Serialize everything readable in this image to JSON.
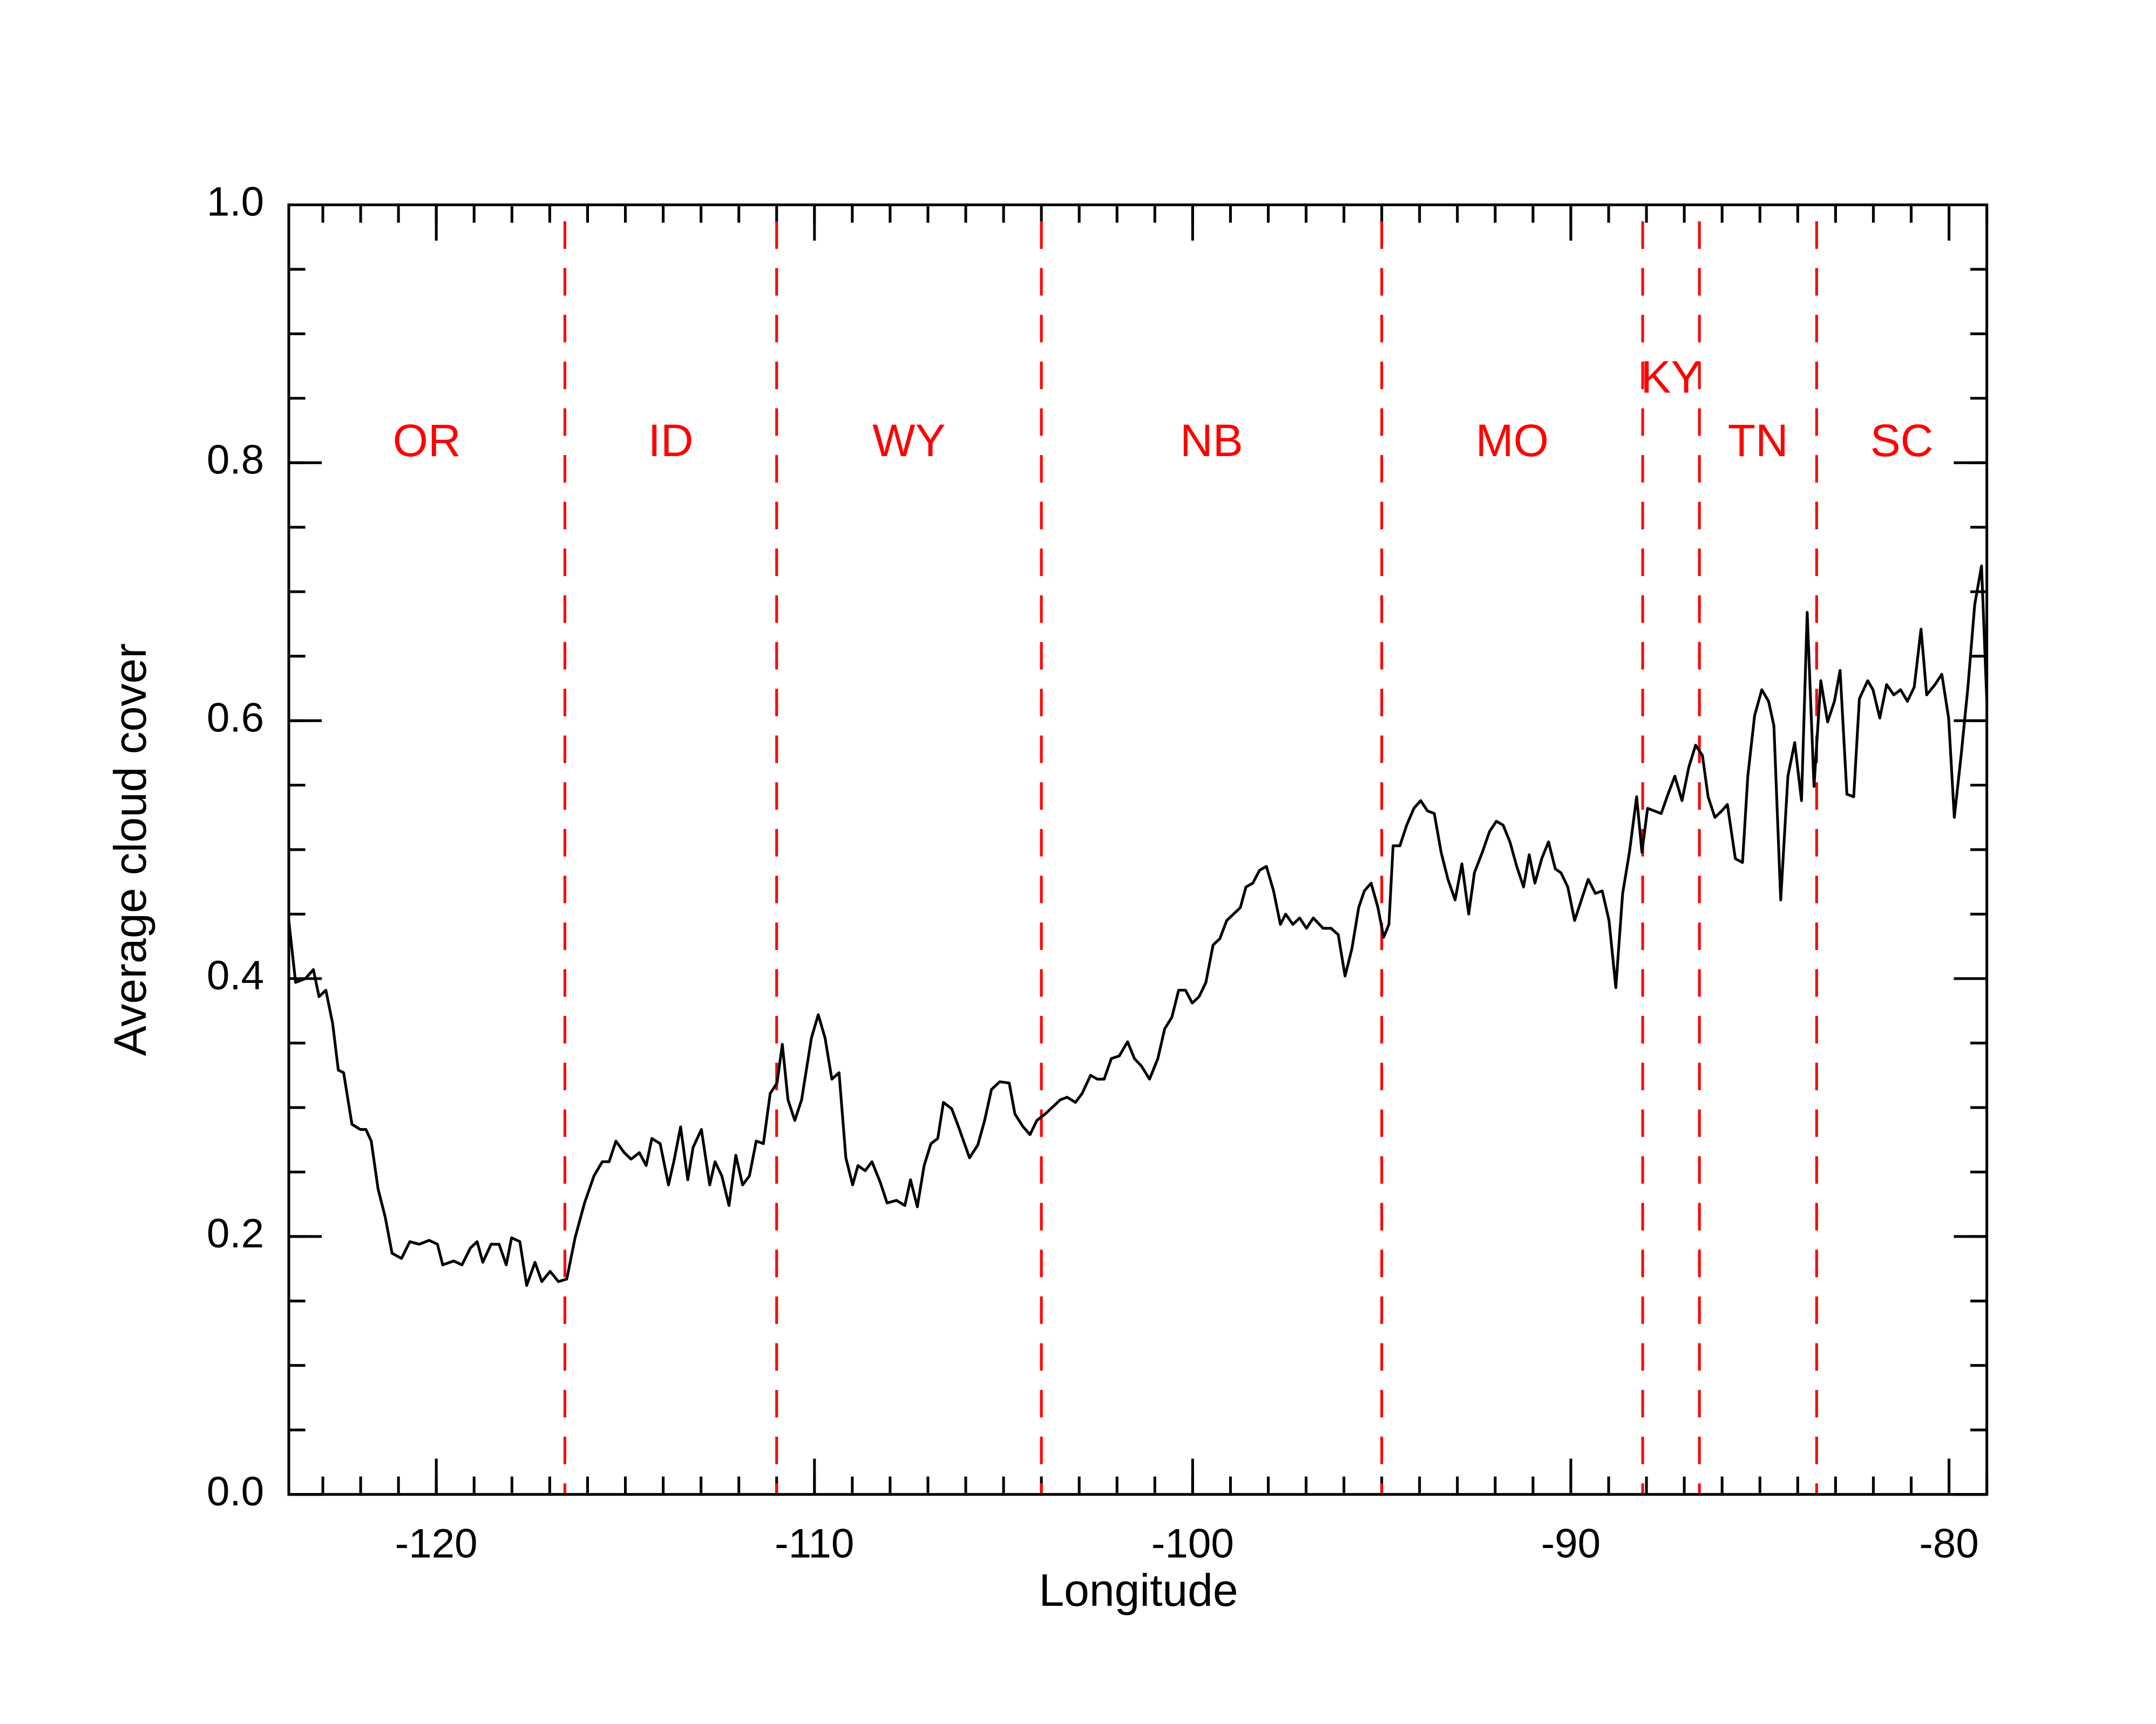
{
  "chart_data": {
    "type": "line",
    "xlabel": "Longitude",
    "ylabel": "Average cloud cover",
    "color": "#000000",
    "xlim": [
      -123.9,
      -79.0
    ],
    "ylim": [
      0,
      1
    ],
    "xticks": [
      -120,
      -110,
      -100,
      -90,
      -80
    ],
    "yticks": [
      {
        "value": 0,
        "label": "0.0"
      },
      0.2,
      0.4,
      0.6,
      0.8,
      {
        "value": 1,
        "label": "1.0"
      }
    ],
    "xminor": [
      -123,
      -122,
      -121,
      -120,
      -119,
      -118,
      -117,
      -116,
      -115,
      -114,
      -113,
      -112,
      -111,
      -110,
      -109,
      -108,
      -107,
      -106,
      -105,
      -104,
      -103,
      -102,
      -101,
      -100,
      -99,
      -98,
      -97,
      -96,
      -95,
      -94,
      -93,
      -92,
      -91,
      -90,
      -89,
      -88,
      -87,
      -86,
      -85,
      -84,
      -83,
      -82,
      -81,
      -80,
      -79
    ],
    "yminor": [
      0.05,
      0.1,
      0.15,
      0.2,
      0.25,
      0.3,
      0.35,
      0.4,
      0.45,
      0.5,
      0.55,
      0.6,
      0.65,
      0.7,
      0.75,
      0.8,
      0.85,
      0.9,
      0.95
    ],
    "boundaries": [
      -116.6,
      -111.0,
      -104.0,
      -95.0,
      -88.1,
      -86.6,
      -83.5
    ],
    "boundary_color": "#ff0000",
    "regions": [
      "OR",
      "ID",
      "WY",
      "NB",
      "MO",
      "KY",
      "TN",
      "SC"
    ],
    "x": [
      -123.9,
      -123.72,
      -123.46,
      -123.25,
      -123.1,
      -122.92,
      -122.74,
      -122.59,
      -122.45,
      -122.23,
      -122.01,
      -121.86,
      -121.72,
      -121.54,
      -121.35,
      -121.17,
      -120.92,
      -120.7,
      -120.45,
      -120.19,
      -119.97,
      -119.83,
      -119.54,
      -119.32,
      -119.1,
      -118.92,
      -118.77,
      -118.55,
      -118.34,
      -118.15,
      -118.01,
      -117.79,
      -117.61,
      -117.39,
      -117.21,
      -116.99,
      -116.77,
      -116.55,
      -116.33,
      -116.08,
      -115.83,
      -115.61,
      -115.43,
      -115.25,
      -115.03,
      -114.85,
      -114.63,
      -114.45,
      -114.3,
      -114.08,
      -113.86,
      -113.72,
      -113.54,
      -113.35,
      -113.21,
      -112.99,
      -112.77,
      -112.63,
      -112.45,
      -112.26,
      -112.08,
      -111.9,
      -111.72,
      -111.54,
      -111.35,
      -111.17,
      -110.99,
      -110.85,
      -110.7,
      -110.52,
      -110.34,
      -110.08,
      -109.9,
      -109.72,
      -109.54,
      -109.35,
      -109.17,
      -108.99,
      -108.85,
      -108.66,
      -108.48,
      -108.26,
      -108.08,
      -107.83,
      -107.61,
      -107.46,
      -107.28,
      -107.1,
      -106.92,
      -106.74,
      -106.59,
      -106.37,
      -106.19,
      -105.9,
      -105.68,
      -105.5,
      -105.32,
      -105.1,
      -104.85,
      -104.7,
      -104.48,
      -104.3,
      -104.12,
      -103.9,
      -103.68,
      -103.5,
      -103.32,
      -103.1,
      -102.92,
      -102.7,
      -102.52,
      -102.34,
      -102.15,
      -101.94,
      -101.72,
      -101.54,
      -101.35,
      -101.14,
      -100.92,
      -100.74,
      -100.55,
      -100.37,
      -100.19,
      -100.01,
      -99.83,
      -99.65,
      -99.46,
      -99.28,
      -99.1,
      -98.92,
      -98.74,
      -98.59,
      -98.41,
      -98.23,
      -98.05,
      -97.86,
      -97.68,
      -97.54,
      -97.35,
      -97.17,
      -96.99,
      -96.81,
      -96.55,
      -96.34,
      -96.15,
      -95.97,
      -95.79,
      -95.61,
      -95.46,
      -95.28,
      -95.1,
      -94.95,
      -94.81,
      -94.7,
      -94.52,
      -94.34,
      -94.15,
      -93.97,
      -93.79,
      -93.61,
      -93.43,
      -93.25,
      -93.06,
      -92.88,
      -92.7,
      -92.55,
      -92.34,
      -92.15,
      -91.97,
      -91.79,
      -91.61,
      -91.43,
      -91.25,
      -91.1,
      -90.95,
      -90.77,
      -90.59,
      -90.41,
      -90.26,
      -90.08,
      -89.9,
      -89.72,
      -89.54,
      -89.35,
      -89.17,
      -88.99,
      -88.81,
      -88.63,
      -88.45,
      -88.26,
      -88.12,
      -87.97,
      -87.79,
      -87.61,
      -87.43,
      -87.25,
      -87.06,
      -86.88,
      -86.7,
      -86.52,
      -86.37,
      -86.19,
      -86.01,
      -85.86,
      -85.65,
      -85.46,
      -85.32,
      -85.14,
      -84.95,
      -84.77,
      -84.63,
      -84.45,
      -84.26,
      -84.08,
      -83.9,
      -83.75,
      -83.57,
      -83.39,
      -83.21,
      -83.03,
      -82.88,
      -82.7,
      -82.52,
      -82.37,
      -82.15,
      -82.01,
      -81.83,
      -81.65,
      -81.46,
      -81.28,
      -81.1,
      -80.92,
      -80.74,
      -80.59,
      -80.37,
      -80.19,
      -80.01,
      -79.86,
      -79.68,
      -79.5,
      -79.32,
      -79.14,
      -79.0
    ],
    "values": [
      0.445,
      0.397,
      0.4,
      0.407,
      0.386,
      0.391,
      0.365,
      0.329,
      0.327,
      0.287,
      0.283,
      0.283,
      0.274,
      0.237,
      0.215,
      0.187,
      0.183,
      0.196,
      0.194,
      0.197,
      0.194,
      0.178,
      0.181,
      0.178,
      0.191,
      0.196,
      0.18,
      0.194,
      0.194,
      0.178,
      0.199,
      0.196,
      0.162,
      0.18,
      0.165,
      0.173,
      0.165,
      0.167,
      0.199,
      0.226,
      0.247,
      0.258,
      0.258,
      0.274,
      0.265,
      0.26,
      0.265,
      0.255,
      0.276,
      0.272,
      0.24,
      0.258,
      0.285,
      0.244,
      0.269,
      0.283,
      0.24,
      0.258,
      0.247,
      0.224,
      0.263,
      0.24,
      0.247,
      0.274,
      0.272,
      0.311,
      0.319,
      0.349,
      0.306,
      0.29,
      0.306,
      0.354,
      0.372,
      0.354,
      0.322,
      0.327,
      0.261,
      0.24,
      0.255,
      0.251,
      0.258,
      0.242,
      0.226,
      0.228,
      0.224,
      0.244,
      0.223,
      0.255,
      0.272,
      0.276,
      0.304,
      0.299,
      0.285,
      0.261,
      0.271,
      0.29,
      0.314,
      0.32,
      0.319,
      0.295,
      0.285,
      0.279,
      0.29,
      0.295,
      0.301,
      0.306,
      0.308,
      0.304,
      0.311,
      0.325,
      0.322,
      0.322,
      0.338,
      0.34,
      0.351,
      0.338,
      0.332,
      0.322,
      0.338,
      0.361,
      0.37,
      0.391,
      0.391,
      0.381,
      0.386,
      0.397,
      0.426,
      0.431,
      0.445,
      0.45,
      0.455,
      0.471,
      0.474,
      0.484,
      0.487,
      0.468,
      0.442,
      0.45,
      0.442,
      0.447,
      0.439,
      0.447,
      0.439,
      0.439,
      0.434,
      0.402,
      0.423,
      0.455,
      0.468,
      0.474,
      0.455,
      0.432,
      0.442,
      0.503,
      0.503,
      0.519,
      0.532,
      0.538,
      0.53,
      0.528,
      0.498,
      0.477,
      0.461,
      0.489,
      0.45,
      0.482,
      0.498,
      0.514,
      0.522,
      0.519,
      0.506,
      0.487,
      0.471,
      0.496,
      0.474,
      0.493,
      0.506,
      0.485,
      0.482,
      0.471,
      0.445,
      0.461,
      0.477,
      0.466,
      0.468,
      0.445,
      0.393,
      0.466,
      0.498,
      0.541,
      0.498,
      0.532,
      0.53,
      0.528,
      0.543,
      0.557,
      0.538,
      0.564,
      0.581,
      0.573,
      0.541,
      0.525,
      0.53,
      0.535,
      0.493,
      0.49,
      0.557,
      0.604,
      0.624,
      0.615,
      0.596,
      0.461,
      0.557,
      0.583,
      0.538,
      0.684,
      0.549,
      0.631,
      0.599,
      0.615,
      0.639,
      0.543,
      0.541,
      0.617,
      0.631,
      0.624,
      0.602,
      0.628,
      0.62,
      0.624,
      0.615,
      0.626,
      0.671,
      0.62,
      0.628,
      0.636,
      0.602,
      0.525,
      0.573,
      0.626,
      0.69,
      0.72,
      0.615
    ]
  }
}
